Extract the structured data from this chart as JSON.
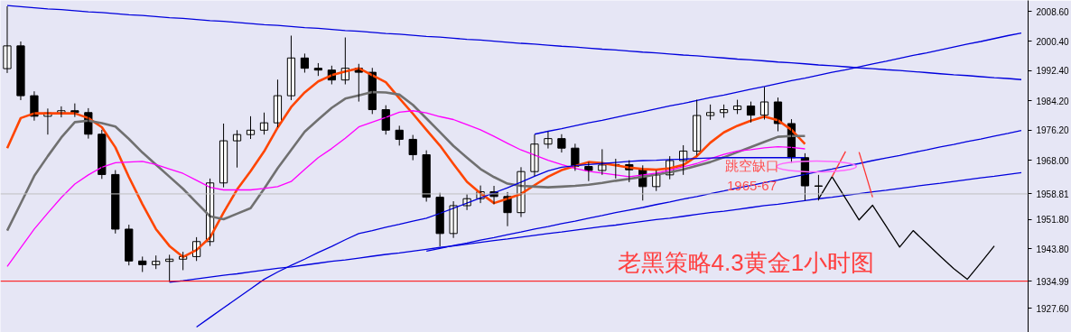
{
  "chart_data": {
    "type": "candlestick",
    "title": "老黑策略4.3黄金1小时图",
    "categories": [
      null,
      null,
      null,
      null,
      null,
      null,
      null,
      null,
      null,
      null,
      null,
      null,
      null,
      null,
      null,
      null,
      null,
      null,
      null,
      null,
      null,
      null,
      null,
      null,
      null,
      null,
      null,
      null,
      null,
      null,
      null,
      null,
      null,
      null,
      null,
      null,
      null,
      null,
      null,
      null,
      null,
      null,
      null,
      null,
      null,
      null,
      null,
      null,
      null,
      null,
      null,
      null,
      null,
      null,
      null,
      null,
      null,
      null,
      null,
      null,
      null,
      null,
      null,
      null,
      null,
      null,
      null,
      null,
      null,
      null,
      null,
      null,
      null,
      null,
      null,
      null
    ],
    "ohlc": [
      [
        1993.0,
        2010.0,
        1991.8,
        1999.2
      ],
      [
        1999.2,
        2000.4,
        1984.4,
        1985.6
      ],
      [
        1985.6,
        1986.8,
        1978.8,
        1980.0
      ],
      [
        1980.0,
        1982.1,
        1975.0,
        1980.9
      ],
      [
        1980.9,
        1982.7,
        1979.7,
        1981.5
      ],
      [
        1981.5,
        1983.5,
        1979.8,
        1981.0
      ],
      [
        1981.0,
        1982.2,
        1973.9,
        1975.1
      ],
      [
        1975.1,
        1976.3,
        1962.9,
        1964.1
      ],
      [
        1964.1,
        1965.3,
        1948.0,
        1949.2
      ],
      [
        1949.2,
        1950.4,
        1939.3,
        1940.5
      ],
      [
        1940.5,
        1941.7,
        1937.5,
        1939.5
      ],
      [
        1939.5,
        1942.0,
        1938.3,
        1940.4
      ],
      [
        1940.4,
        1942.2,
        1934.8,
        1941.0
      ],
      [
        1941.0,
        1943.0,
        1938.0,
        1941.7
      ],
      [
        1941.7,
        1947.0,
        1940.5,
        1945.8
      ],
      [
        1945.8,
        1963.0,
        1944.6,
        1961.8
      ],
      [
        1961.8,
        1978.0,
        1960.6,
        1973.3
      ],
      [
        1973.3,
        1976.2,
        1966.0,
        1975.0
      ],
      [
        1975.0,
        1980.0,
        1973.8,
        1976.2
      ],
      [
        1976.2,
        1981.0,
        1975.0,
        1978.2
      ],
      [
        1978.2,
        1990.0,
        1977.0,
        1985.6
      ],
      [
        1985.6,
        2002.0,
        1984.4,
        1995.9
      ],
      [
        1995.9,
        1997.1,
        1991.9,
        1993.1
      ],
      [
        1993.1,
        1994.5,
        1991.0,
        1992.6
      ],
      [
        1992.6,
        1993.8,
        1988.7,
        1989.9
      ],
      [
        1989.9,
        2001.5,
        1988.7,
        1993.1
      ],
      [
        1993.1,
        1994.3,
        1984.0,
        1992.0
      ],
      [
        1992.0,
        1993.2,
        1980.6,
        1981.8
      ],
      [
        1981.8,
        1983.0,
        1975.0,
        1976.2
      ],
      [
        1976.2,
        1977.4,
        1972.0,
        1973.7
      ],
      [
        1973.7,
        1974.9,
        1968.0,
        1969.5
      ],
      [
        1969.5,
        1970.7,
        1956.7,
        1957.9
      ],
      [
        1957.9,
        1959.1,
        1944.5,
        1948.0
      ],
      [
        1948.0,
        1956.8,
        1946.8,
        1955.6
      ],
      [
        1955.6,
        1958.7,
        1954.4,
        1957.5
      ],
      [
        1957.5,
        1961.1,
        1956.3,
        1959.4
      ],
      [
        1959.4,
        1961.0,
        1956.0,
        1958.1
      ],
      [
        1958.1,
        1959.3,
        1950.0,
        1953.7
      ],
      [
        1953.7,
        1966.1,
        1952.5,
        1964.9
      ],
      [
        1964.9,
        1975.0,
        1963.7,
        1972.4
      ],
      [
        1972.4,
        1975.8,
        1971.2,
        1973.9
      ],
      [
        1973.9,
        1975.1,
        1970.1,
        1971.3
      ],
      [
        1971.3,
        1972.5,
        1965.1,
        1966.3
      ],
      [
        1966.3,
        1967.5,
        1962.3,
        1965.2
      ],
      [
        1965.2,
        1971.0,
        1964.0,
        1966.7
      ],
      [
        1966.7,
        1968.4,
        1963.0,
        1966.8
      ],
      [
        1966.8,
        1968.0,
        1962.0,
        1965.4
      ],
      [
        1965.4,
        1966.6,
        1957.0,
        1960.8
      ],
      [
        1960.8,
        1965.2,
        1959.6,
        1964.0
      ],
      [
        1964.0,
        1969.1,
        1962.8,
        1967.9
      ],
      [
        1967.9,
        1972.1,
        1964.0,
        1970.5
      ],
      [
        1970.5,
        1984.5,
        1969.3,
        1980.2
      ],
      [
        1980.2,
        1983.2,
        1979.0,
        1981.0
      ],
      [
        1981.0,
        1983.2,
        1979.6,
        1981.8
      ],
      [
        1981.8,
        1984.5,
        1980.6,
        1982.8
      ],
      [
        1982.8,
        1984.0,
        1978.3,
        1980.3
      ],
      [
        1980.3,
        1988.0,
        1979.1,
        1983.9
      ],
      [
        1983.9,
        1985.1,
        1975.9,
        1978.0
      ],
      [
        1978.0,
        1979.2,
        1967.3,
        1968.7
      ],
      [
        1968.7,
        1969.9,
        1957.0,
        1961.0
      ],
      [
        1961.0,
        1964.0,
        1957.0,
        1960.9
      ],
      null,
      null,
      null,
      null,
      null,
      null,
      null,
      null,
      null,
      null,
      null,
      null,
      null,
      null,
      null
    ],
    "series": [
      {
        "type": "line",
        "color": "#ff4500",
        "values": [
          1971.3,
          1979.5,
          1980.8,
          1980.8,
          1980.8,
          1980.8,
          1979.5,
          1977.0,
          1971.5,
          1963.4,
          1956.0,
          1949.2,
          1944.6,
          1941.6,
          1943.5,
          1946.9,
          1953.7,
          1960.0,
          1965.0,
          1970.4,
          1976.9,
          1982.5,
          1986.5,
          1989.5,
          1991.2,
          1992.2,
          1993.1,
          1991.2,
          1989.3,
          1984.9,
          1980.7,
          1976.3,
          1972.0,
          1967.0,
          1962.1,
          1959.0,
          1956.3,
          1957.5,
          1958.8,
          1961.2,
          1963.5,
          1965.3,
          1966.4,
          1967.5,
          1967.2,
          1966.6,
          1966.0,
          1965.6,
          1965.4,
          1965.8,
          1966.7,
          1969.1,
          1972.8,
          1975.6,
          1977.4,
          1978.8,
          1979.9,
          1978.9,
          1976.3,
          1972.4,
          null,
          null,
          null,
          null,
          null,
          null,
          null,
          null,
          null,
          null,
          null,
          null,
          null,
          null,
          null,
          null
        ]
      },
      {
        "type": "line",
        "color": "#707070",
        "values": [
          1948.8,
          1956.2,
          1963.7,
          1969.1,
          1974.2,
          1978.4,
          1978.8,
          1978.1,
          1977.2,
          1973.8,
          1970.1,
          1966.8,
          1963.5,
          1960.2,
          1956.4,
          1952.7,
          1951.9,
          1953.4,
          1954.9,
          1960.2,
          1965.8,
          1970.8,
          1975.8,
          1979.1,
          1982.3,
          1984.8,
          1985.7,
          1986.6,
          1986.5,
          1985.9,
          1983.1,
          1979.4,
          1975.7,
          1971.9,
          1968.7,
          1965.6,
          1963.4,
          1961.6,
          1961.0,
          1960.8,
          1960.6,
          1960.8,
          1961.0,
          1961.3,
          1961.8,
          1962.4,
          1962.9,
          1963.5,
          1964.1,
          1964.7,
          1965.5,
          1966.5,
          1967.5,
          1968.8,
          1970.2,
          1971.6,
          1973.0,
          1974.4,
          1974.6,
          1974.6,
          null,
          null,
          null,
          null,
          null,
          null,
          null,
          null,
          null,
          null,
          null,
          null,
          null,
          null,
          null,
          null
        ]
      },
      {
        "type": "line",
        "color": "#ff00ff",
        "values": [
          1939.0,
          1944.1,
          1949.2,
          1953.6,
          1957.8,
          1961.5,
          1964.0,
          1966.1,
          1967.3,
          1967.5,
          1967.7,
          1966.8,
          1965.6,
          1964.4,
          1962.5,
          1960.6,
          1959.9,
          1959.9,
          1959.9,
          1960.3,
          1960.8,
          1962.2,
          1965.5,
          1968.7,
          1971.2,
          1974.0,
          1977.1,
          1978.4,
          1979.7,
          1981.1,
          1981.5,
          1980.9,
          1979.9,
          1979.1,
          1977.7,
          1976.3,
          1974.5,
          1972.6,
          1970.8,
          1969.4,
          1968.0,
          1966.8,
          1965.8,
          1965.0,
          1964.5,
          1964.0,
          1963.5,
          1964.0,
          1964.5,
          1965.3,
          1966.2,
          1967.1,
          1968.4,
          1969.6,
          1970.5,
          1970.9,
          1971.4,
          1971.7,
          1971.5,
          1971.1,
          null,
          null,
          null,
          null,
          null,
          null,
          null,
          null,
          null,
          null,
          null,
          null,
          null,
          null,
          null,
          null
        ]
      },
      {
        "type": "line",
        "color": "#0000dd",
        "values": [
          null,
          null,
          null,
          null,
          null,
          null,
          null,
          null,
          null,
          null,
          null,
          null,
          null,
          null,
          1922.5,
          1925.1,
          1927.7,
          1930.3,
          1932.9,
          1935.5,
          1937.5,
          1939.3,
          1941.0,
          1942.8,
          1944.5,
          1946.3,
          1948.0,
          1948.8,
          1949.7,
          1950.5,
          1951.4,
          1952.2,
          1953.5,
          1954.9,
          1956.3,
          1957.7,
          1959.1,
          1960.5,
          1962.0,
          1963.6,
          1965.1,
          1966.1,
          1966.5,
          1966.8,
          1967.1,
          1967.4,
          1967.7,
          1967.9,
          1968.0,
          1968.2,
          1968.3,
          1968.5,
          1968.6,
          1968.7,
          1968.7,
          1968.7,
          1968.7,
          1968.7,
          1968.7,
          1968.7,
          null,
          null,
          null,
          null,
          null,
          null,
          null,
          null,
          null,
          null,
          null,
          null,
          null,
          null,
          null,
          null
        ]
      },
      {
        "type": "line",
        "color": "#0000dd",
        "values": [
          2010.2,
          2009.9,
          2009.6,
          2009.3,
          2009.1,
          2008.8,
          2008.5,
          2008.3,
          2008.0,
          2007.7,
          2007.5,
          2007.2,
          2006.9,
          2006.7,
          2006.4,
          2006.1,
          2005.9,
          2005.6,
          2005.3,
          2005.0,
          2004.8,
          2004.5,
          2004.2,
          2004.0,
          2003.7,
          2003.4,
          2003.2,
          2002.9,
          2002.6,
          2002.4,
          2002.1,
          2001.8,
          2001.6,
          2001.3,
          2001.0,
          2000.8,
          2000.5,
          2000.2,
          1999.9,
          1999.7,
          1999.4,
          1999.1,
          1998.9,
          1998.6,
          1998.3,
          1998.1,
          1997.8,
          1997.5,
          1997.3,
          1997.0,
          1996.7,
          1996.5,
          1996.2,
          1995.9,
          1995.6,
          1995.4,
          1995.1,
          1994.8,
          1994.6,
          1994.3,
          1994.0,
          1993.8,
          1993.5,
          1993.2,
          1993.0,
          1992.7,
          1992.5,
          1992.2,
          1991.9,
          1991.6,
          1991.3,
          1991.1,
          1990.8,
          1990.5,
          1990.3,
          1990.0
        ]
      },
      {
        "type": "line",
        "color": "#0000dd",
        "values": [
          null,
          null,
          null,
          null,
          null,
          null,
          null,
          null,
          null,
          null,
          null,
          null,
          1934.7,
          1935.1,
          1935.6,
          1936.1,
          1936.6,
          1937.0,
          1937.5,
          1938.0,
          1938.5,
          1938.9,
          1939.4,
          1939.9,
          1940.4,
          1940.8,
          1941.3,
          1941.8,
          1942.3,
          1942.7,
          1943.2,
          1943.7,
          1944.2,
          1944.6,
          1945.1,
          1945.6,
          1946.1,
          1946.5,
          1947.0,
          1947.5,
          1948.0,
          1948.4,
          1948.9,
          1949.4,
          1949.9,
          1950.3,
          1950.8,
          1951.3,
          1951.8,
          1952.2,
          1952.7,
          1953.2,
          1953.7,
          1954.1,
          1954.6,
          1955.1,
          1955.6,
          1956.0,
          1956.5,
          1957.0,
          1957.5,
          1957.9,
          1958.4,
          1958.9,
          1959.4,
          1959.8,
          1960.3,
          1960.8,
          1961.3,
          1961.7,
          1962.2,
          1962.7,
          1963.2,
          1963.6,
          1964.1,
          1964.6
        ]
      },
      {
        "type": "line",
        "color": "#0000dd",
        "values": [
          null,
          null,
          null,
          null,
          null,
          null,
          null,
          null,
          null,
          null,
          null,
          null,
          null,
          null,
          null,
          null,
          null,
          null,
          null,
          null,
          null,
          null,
          null,
          null,
          null,
          null,
          null,
          null,
          null,
          null,
          null,
          1943.2,
          1943.9,
          1944.7,
          1945.4,
          1946.2,
          1946.9,
          1947.7,
          1948.4,
          1949.2,
          1949.9,
          1950.7,
          1951.4,
          1952.2,
          1952.9,
          1953.7,
          1954.4,
          1955.1,
          1955.9,
          1956.6,
          1957.4,
          1958.1,
          1958.9,
          1959.6,
          1960.4,
          1961.1,
          1961.9,
          1962.6,
          1963.4,
          1964.1,
          1964.9,
          1965.6,
          1966.4,
          1967.1,
          1967.9,
          1968.6,
          1969.3,
          1970.1,
          1970.8,
          1971.6,
          1972.3,
          1973.1,
          1973.8,
          1974.6,
          1975.3,
          1976.1
        ]
      },
      {
        "type": "line",
        "color": "#0000dd",
        "values": [
          null,
          null,
          null,
          null,
          null,
          null,
          null,
          null,
          null,
          null,
          null,
          null,
          null,
          null,
          null,
          null,
          null,
          null,
          null,
          null,
          null,
          null,
          null,
          null,
          null,
          null,
          null,
          null,
          null,
          null,
          null,
          null,
          null,
          null,
          null,
          null,
          null,
          null,
          null,
          1975.1,
          1975.9,
          1976.6,
          1977.4,
          1978.2,
          1978.9,
          1979.7,
          1980.5,
          1981.2,
          1982.0,
          1982.8,
          1983.5,
          1984.3,
          1985.1,
          1985.8,
          1986.6,
          1987.4,
          1988.1,
          1988.9,
          1989.7,
          1990.4,
          1991.2,
          1992.0,
          1992.7,
          1993.5,
          1994.3,
          1995.0,
          1995.8,
          1996.6,
          1997.3,
          1998.1,
          1998.9,
          1999.7,
          2000.4,
          2001.2,
          2002.0,
          2002.7
        ]
      },
      {
        "type": "line",
        "color": "#000000",
        "values": [
          null,
          null,
          null,
          null,
          null,
          null,
          null,
          null,
          null,
          null,
          null,
          null,
          null,
          null,
          null,
          null,
          null,
          null,
          null,
          null,
          null,
          null,
          null,
          null,
          null,
          null,
          null,
          null,
          null,
          null,
          null,
          null,
          null,
          null,
          null,
          null,
          null,
          null,
          null,
          null,
          null,
          null,
          null,
          null,
          null,
          null,
          null,
          null,
          null,
          null,
          null,
          null,
          null,
          null,
          null,
          null,
          null,
          null,
          null,
          null,
          1957.4,
          1963.5,
          1957.6,
          1951.7,
          1955.7,
          1950.0,
          1944.3,
          1948.8,
          1945.3,
          1941.8,
          1938.4,
          1935.5,
          1940.0,
          1944.6,
          null,
          null
        ]
      },
      {
        "type": "line",
        "color": "#ff3333",
        "values": [
          null,
          null,
          null,
          null,
          null,
          null,
          null,
          null,
          null,
          null,
          null,
          null,
          null,
          null,
          null,
          null,
          null,
          null,
          null,
          null,
          null,
          null,
          null,
          null,
          null,
          null,
          null,
          null,
          null,
          null,
          null,
          null,
          null,
          null,
          null,
          null,
          null,
          null,
          null,
          null,
          null,
          null,
          null,
          null,
          null,
          null,
          null,
          null,
          null,
          null,
          null,
          null,
          null,
          null,
          null,
          null,
          null,
          null,
          null,
          null,
          null,
          1963.5,
          1970.4,
          null,
          null,
          null,
          null,
          null,
          null,
          null,
          null,
          null,
          null,
          null,
          null,
          null
        ]
      },
      {
        "type": "line",
        "color": "#ff3333",
        "values": [
          null,
          null,
          null,
          null,
          null,
          null,
          null,
          null,
          null,
          null,
          null,
          null,
          null,
          null,
          null,
          null,
          null,
          null,
          null,
          null,
          null,
          null,
          null,
          null,
          null,
          null,
          null,
          null,
          null,
          null,
          null,
          null,
          null,
          null,
          null,
          null,
          null,
          null,
          null,
          null,
          null,
          null,
          null,
          null,
          null,
          null,
          null,
          null,
          null,
          null,
          null,
          null,
          null,
          null,
          null,
          null,
          null,
          null,
          null,
          null,
          null,
          null,
          null,
          1970.2,
          1957.9,
          null,
          null,
          null,
          null,
          null,
          null,
          null,
          null,
          null,
          null,
          null
        ]
      }
    ],
    "ref_lines": [
      {
        "axis": "y",
        "value": 1958.81,
        "label": "1958.81",
        "color": "#c0c0c0"
      },
      {
        "axis": "y",
        "value": 1934.99,
        "label": "1934.99",
        "color": "#ff0000"
      }
    ],
    "annotations": [
      "跳空缺口",
      "1965-67"
    ],
    "ylim": [
      1921.0,
      2011.6
    ],
    "yticks": [
      {
        "value": 2008.6,
        "label": "2008.60"
      },
      {
        "value": 2000.4,
        "label": "2000.40"
      },
      {
        "value": 1992.4,
        "label": "1992.40"
      },
      {
        "value": 1984.2,
        "label": "1984.20"
      },
      {
        "value": 1976.2,
        "label": "1976.20"
      },
      {
        "value": 1968.0,
        "label": "1968.00"
      },
      {
        "value": 1951.8,
        "label": "1951.80"
      },
      {
        "value": 1943.8,
        "label": "1943.80"
      },
      {
        "value": 1927.6,
        "label": "1927.60"
      }
    ],
    "tick_labels": "y",
    "grid": false
  }
}
